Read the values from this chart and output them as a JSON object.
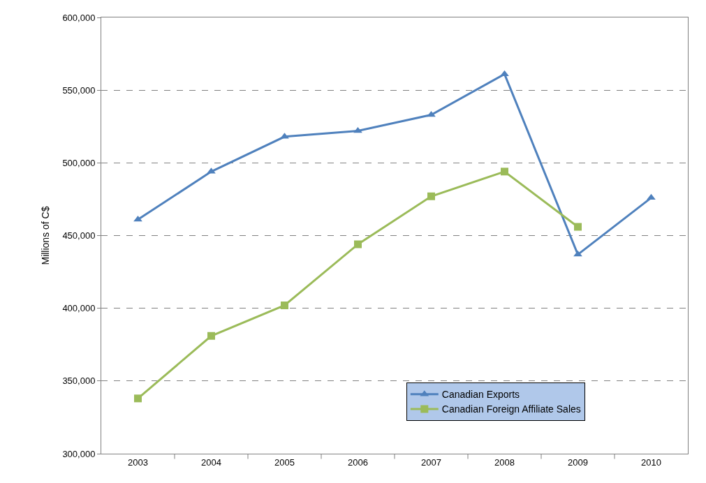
{
  "chart_data": {
    "type": "line",
    "ylabel": "Millions of C$",
    "categories": [
      "2003",
      "2004",
      "2005",
      "2006",
      "2007",
      "2008",
      "2009",
      "2010"
    ],
    "series": [
      {
        "name": "Canadian Exports",
        "color": "#4f81bd",
        "marker": "triangle",
        "values": [
          461000,
          494000,
          518000,
          522000,
          533000,
          561000,
          437000,
          476000
        ]
      },
      {
        "name": "Canadian Foreign Affiliate Sales",
        "color": "#9bbb59",
        "marker": "square",
        "values": [
          338000,
          381000,
          402000,
          444000,
          477000,
          494000,
          456000,
          null
        ]
      }
    ],
    "ylim": [
      300000,
      600000
    ],
    "yticks": [
      {
        "value": 300000,
        "label": "300,000"
      },
      {
        "value": 350000,
        "label": "350,000"
      },
      {
        "value": 400000,
        "label": "400,000"
      },
      {
        "value": 450000,
        "label": "450,000"
      },
      {
        "value": 500000,
        "label": "500,000"
      },
      {
        "value": 550000,
        "label": "550,000"
      },
      {
        "value": 600000,
        "label": "600,000"
      }
    ],
    "grid": "y",
    "legend": "bottom right",
    "line_style": "solid"
  }
}
